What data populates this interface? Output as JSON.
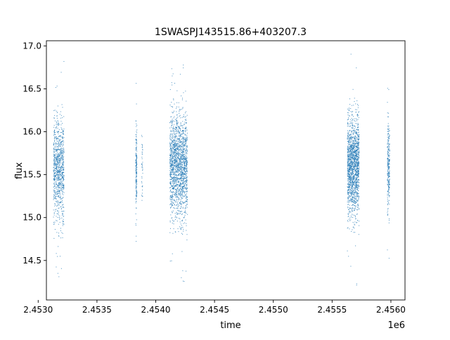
{
  "chart_data": {
    "type": "scatter",
    "title": "1SWASPJ143515.86+403207.3",
    "xlabel": "time",
    "ylabel": "flux",
    "x_offset_label": "1e6",
    "xlim": [
      2.45307,
      2.45612
    ],
    "ylim": [
      14.04,
      17.06
    ],
    "x_ticks": [
      {
        "value": 2.453,
        "label": "2.4530"
      },
      {
        "value": 2.4535,
        "label": "2.4535"
      },
      {
        "value": 2.454,
        "label": "2.4540"
      },
      {
        "value": 2.4545,
        "label": "2.4545"
      },
      {
        "value": 2.455,
        "label": "2.4550"
      },
      {
        "value": 2.4555,
        "label": "2.4555"
      },
      {
        "value": 2.456,
        "label": "2.4560"
      }
    ],
    "y_ticks": [
      {
        "value": 14.5,
        "label": "14.5"
      },
      {
        "value": 15.0,
        "label": "15.0"
      },
      {
        "value": 15.5,
        "label": "15.5"
      },
      {
        "value": 16.0,
        "label": "16.0"
      },
      {
        "value": 16.5,
        "label": "16.5"
      },
      {
        "value": 17.0,
        "label": "17.0"
      }
    ],
    "grid": false,
    "legend": "none",
    "marker_color": "#1f77b4",
    "observing_seasons": [
      {
        "x_start": 2.45313,
        "x_end": 2.45322,
        "y_center": 15.55,
        "y_spread": 0.3,
        "y_min": 14.18,
        "y_max": 16.93,
        "density": 900
      },
      {
        "x_start": 2.45383,
        "x_end": 2.45384,
        "y_center": 15.55,
        "y_spread": 0.22,
        "y_min": 14.2,
        "y_max": 16.9,
        "density": 180
      },
      {
        "x_start": 2.45388,
        "x_end": 2.45389,
        "y_center": 15.6,
        "y_spread": 0.2,
        "y_min": 15.2,
        "y_max": 16.45,
        "density": 40
      },
      {
        "x_start": 2.45412,
        "x_end": 2.45427,
        "y_center": 15.6,
        "y_spread": 0.3,
        "y_min": 14.18,
        "y_max": 16.93,
        "density": 1800
      },
      {
        "x_start": 2.45563,
        "x_end": 2.45573,
        "y_center": 15.6,
        "y_spread": 0.28,
        "y_min": 14.18,
        "y_max": 16.93,
        "density": 1600
      },
      {
        "x_start": 2.45597,
        "x_end": 2.45599,
        "y_center": 15.6,
        "y_spread": 0.25,
        "y_min": 14.35,
        "y_max": 16.75,
        "density": 260
      }
    ]
  }
}
